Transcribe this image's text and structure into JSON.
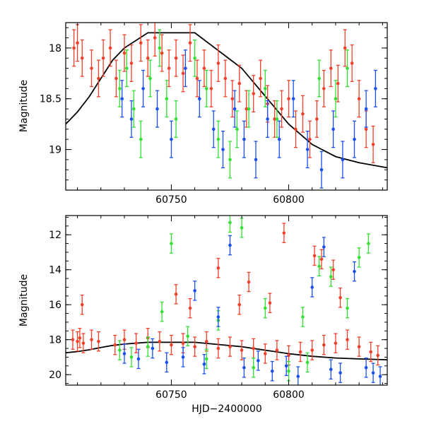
{
  "colors": {
    "red": "#f2402a",
    "green": "#33e033",
    "blue": "#1a4ff0",
    "curve": "#000000"
  },
  "chart_data": [
    {
      "type": "scatter",
      "title": "",
      "xlabel": "",
      "ylabel": "Magnitude",
      "xlim": [
        60705,
        60842
      ],
      "ylim": [
        19.4,
        17.75
      ],
      "y_inverted": true,
      "xticks": [
        60750,
        60800
      ],
      "yticks": [
        18,
        18.5,
        19
      ],
      "ytick_labels": [
        "18",
        "18.5",
        "19"
      ],
      "error_bars": true,
      "grid": false,
      "legend": "none",
      "series": [
        {
          "color": "red",
          "x": [
            60708.5,
            60710,
            60712,
            60716,
            60719,
            60721,
            60724,
            60726.5,
            60730,
            60733,
            60737,
            60740,
            60743,
            60746,
            60749,
            60752,
            60755,
            60758,
            60761,
            60764,
            60767,
            60770,
            60773,
            60776,
            60779,
            60782,
            60785,
            60788,
            60791,
            60794,
            60797,
            60800,
            60803,
            60806,
            60809,
            60812,
            60815,
            60818,
            60821,
            60824,
            60827,
            60830,
            60833,
            60836
          ],
          "y": [
            18.0,
            17.95,
            18.1,
            18.2,
            18.3,
            18.1,
            18.0,
            18.3,
            18.05,
            18.15,
            17.95,
            18.1,
            17.9,
            18.05,
            18.2,
            18.1,
            18.25,
            17.95,
            18.3,
            18.2,
            18.4,
            18.15,
            18.3,
            18.5,
            18.35,
            18.6,
            18.45,
            18.3,
            18.55,
            18.7,
            18.6,
            18.5,
            18.8,
            18.65,
            18.9,
            18.7,
            18.4,
            18.2,
            18.35,
            18.0,
            18.15,
            18.5,
            18.8,
            18.95
          ]
        },
        {
          "color": "green",
          "x": [
            60728,
            60731,
            60734,
            60737,
            60741,
            60745,
            60748,
            60752,
            60760,
            60765,
            60770,
            60775,
            60778,
            60783,
            60790,
            60795,
            60813,
            60820,
            60825
          ],
          "y": [
            18.4,
            18.2,
            18.6,
            18.9,
            18.3,
            18.0,
            18.5,
            18.7,
            18.1,
            18.4,
            18.9,
            19.1,
            18.8,
            18.6,
            18.4,
            18.7,
            18.3,
            18.5,
            18.2
          ]
        },
        {
          "color": "blue",
          "x": [
            60729,
            60733,
            60738,
            60744,
            60750,
            60756,
            60762,
            60768,
            60772,
            60777,
            60781,
            60786,
            60791,
            60796,
            60802,
            60808,
            60814,
            60819,
            60823,
            60828,
            60833,
            60837
          ],
          "y": [
            18.5,
            18.7,
            18.4,
            18.6,
            18.9,
            18.2,
            18.5,
            18.8,
            19.0,
            18.6,
            18.9,
            19.1,
            18.7,
            18.9,
            18.5,
            19.0,
            19.2,
            18.8,
            19.1,
            18.9,
            18.6,
            18.4
          ]
        }
      ],
      "model_curve": {
        "color": "curve",
        "x": [
          60705,
          60710,
          60715,
          60720,
          60725,
          60730,
          60740,
          60760,
          60780,
          60800,
          60810,
          60820,
          60830,
          60842
        ],
        "y": [
          18.75,
          18.63,
          18.48,
          18.3,
          18.12,
          18.0,
          17.85,
          17.85,
          18.2,
          18.75,
          18.95,
          19.07,
          19.13,
          19.18
        ]
      }
    },
    {
      "type": "scatter",
      "title": "",
      "xlabel": "HJD−2400000",
      "ylabel": "Magnitude",
      "xlim": [
        60705,
        60842
      ],
      "ylim": [
        20.6,
        10.9
      ],
      "y_inverted": true,
      "xticks": [
        60750,
        60800
      ],
      "yticks": [
        12,
        14,
        16,
        18,
        20
      ],
      "ytick_labels": [
        "12",
        "14",
        "16",
        "18",
        "20"
      ],
      "error_bars": true,
      "grid": false,
      "legend": "none",
      "series": [
        {
          "color": "red",
          "x": [
            60708,
            60710,
            60711,
            60712.5,
            60716,
            60719,
            60726,
            60730,
            60735,
            60740,
            60745,
            60750,
            60755,
            60760,
            60765,
            60770,
            60775,
            60780,
            60785,
            60790,
            60795,
            60800,
            60805,
            60810,
            60815,
            60820,
            60825,
            60830,
            60835,
            60838,
            60712,
            60752,
            60758,
            60770,
            60779,
            60783,
            60792,
            60798,
            60811,
            60814,
            60819,
            60822
          ],
          "y": [
            18.0,
            18.1,
            17.9,
            18.2,
            18.0,
            18.1,
            18.3,
            18.0,
            18.2,
            17.9,
            18.1,
            18.3,
            18.2,
            18.4,
            18.1,
            18.5,
            18.4,
            18.6,
            18.5,
            18.8,
            18.6,
            18.9,
            18.7,
            18.6,
            18.3,
            18.2,
            18.0,
            18.4,
            18.7,
            18.9,
            16.0,
            15.4,
            16.2,
            13.9,
            16.0,
            14.7,
            15.9,
            11.9,
            13.2,
            13.4,
            14.0,
            15.6
          ]
        },
        {
          "color": "green",
          "x": [
            60728,
            60733,
            60740,
            60746,
            60750,
            60757,
            60765,
            60770,
            60775,
            60780,
            60785,
            60790,
            60800,
            60806,
            60808,
            60813,
            60818,
            60825,
            60830,
            60834
          ],
          "y": [
            18.6,
            19.0,
            18.4,
            16.4,
            12.5,
            17.8,
            19.1,
            16.9,
            11.3,
            11.6,
            19.6,
            16.2,
            19.8,
            16.7,
            19.3,
            13.8,
            14.4,
            16.2,
            13.3,
            12.5
          ]
        },
        {
          "color": "blue",
          "x": [
            60730,
            60736,
            60742,
            60748,
            60755,
            60760,
            60764,
            60770,
            60775,
            60781,
            60787,
            60793,
            60799,
            60804,
            60810,
            60815,
            60818,
            60822,
            60828,
            60833,
            60836,
            60839
          ],
          "y": [
            18.8,
            19.1,
            18.5,
            19.3,
            19.0,
            15.2,
            19.4,
            16.7,
            12.6,
            19.6,
            19.2,
            19.8,
            19.5,
            20.1,
            15.0,
            12.7,
            19.7,
            19.9,
            14.1,
            19.6,
            19.9,
            20.1
          ]
        }
      ],
      "model_curve": {
        "color": "curve",
        "x": [
          60705,
          60710,
          60715,
          60720,
          60725,
          60730,
          60740,
          60760,
          60780,
          60800,
          60810,
          60820,
          60830,
          60842
        ],
        "y": [
          18.75,
          18.68,
          18.58,
          18.45,
          18.33,
          18.25,
          18.15,
          18.15,
          18.4,
          18.8,
          18.95,
          19.05,
          19.1,
          19.15
        ]
      }
    }
  ]
}
